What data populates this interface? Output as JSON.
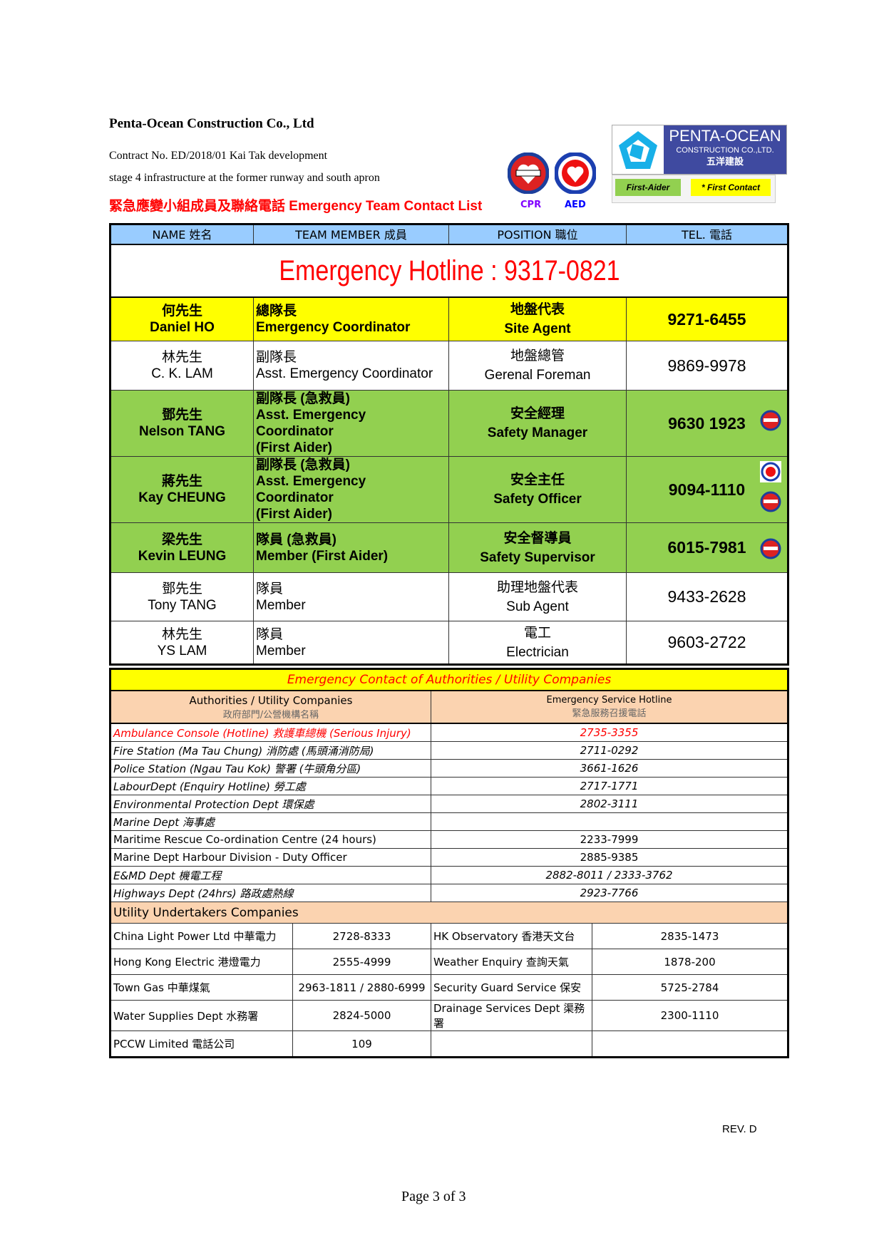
{
  "header": {
    "company": "Penta-Ocean Construction Co., Ltd",
    "contract": "Contract No. ED/2018/01   Kai Tak development",
    "stage": "stage 4 infrastructure at the former runway and south apron",
    "list_title": "緊急應變小組成員及聯絡電話 Emergency Team Contact List",
    "badges": [
      {
        "label": "CPR",
        "icon": "cpr-badge-icon",
        "color": "#8000ff"
      },
      {
        "label": "AED",
        "icon": "aed-badge-icon",
        "color": "#0000ff"
      }
    ],
    "logo": {
      "text": "PENTA-OCEAN",
      "sub": "CONSTRUCTION CO.,LTD.",
      "zh": "五洋建設",
      "color": "#3f4aa0"
    },
    "legend": [
      {
        "label": "First-Aider",
        "color": "#92d050"
      },
      {
        "label": "* First Contact",
        "color": "#ffff00"
      }
    ]
  },
  "team": {
    "columns": [
      "NAME 姓名",
      "TEAM MEMBER 成員",
      "POSITION 職位",
      "TEL. 電話"
    ],
    "hotline": "Emergency Hotline : 9317-0821",
    "rows": [
      {
        "zh_name": "何先生",
        "name": "Daniel HO",
        "role_zh": "總隊長",
        "role": "Emergency Coordinator",
        "role_extra": "",
        "pos_zh": "地盤代表",
        "pos": "Site Agent",
        "tel": "9271-6455",
        "style": "first-contact",
        "icons": []
      },
      {
        "zh_name": "林先生",
        "name": "C. K. LAM",
        "role_zh": "副隊長",
        "role": "Asst. Emergency Coordinator",
        "role_extra": "",
        "pos_zh": "地盤總管",
        "pos": "Gerenal Foreman",
        "tel": "9869-9978",
        "style": "normal",
        "icons": []
      },
      {
        "zh_name": "鄧先生",
        "name": "Nelson TANG",
        "role_zh": "副隊長 (急救員)",
        "role": "Asst. Emergency Coordinator",
        "role_extra": "(First Aider)",
        "pos_zh": "安全經理",
        "pos": "Safety Manager",
        "tel": "9630 1923",
        "style": "first-aider",
        "icons": [
          "cpr"
        ]
      },
      {
        "zh_name": "蔣先生",
        "name": "Kay CHEUNG",
        "role_zh": "副隊長 (急救員)",
        "role": "Asst. Emergency Coordinator",
        "role_extra": "(First Aider)",
        "pos_zh": "安全主任",
        "pos": "Safety Officer",
        "tel": "9094-1110",
        "style": "first-aider",
        "icons": [
          "aed",
          "cpr"
        ]
      },
      {
        "zh_name": "梁先生",
        "name": "Kevin LEUNG",
        "role_zh": "隊員 (急救員)",
        "role": "Member (First Aider)",
        "role_extra": "",
        "pos_zh": "安全督導員",
        "pos": "Safety Supervisor",
        "tel": "6015-7981",
        "style": "first-aider",
        "icons": [
          "cpr"
        ]
      },
      {
        "zh_name": "鄧先生",
        "name": "Tony TANG",
        "role_zh": "隊員",
        "role": "Member",
        "role_extra": "",
        "pos_zh": "助理地盤代表",
        "pos": "Sub Agent",
        "tel": "9433-2628",
        "style": "normal",
        "icons": []
      },
      {
        "zh_name": "林先生",
        "name": "YS LAM",
        "role_zh": "隊員",
        "role": "Member",
        "role_extra": "",
        "pos_zh": "電工",
        "pos": "Electrician",
        "tel": "9603-2722",
        "style": "normal",
        "icons": []
      }
    ]
  },
  "authorities": {
    "title": "Emergency Contact of Authorities / Utility Companies",
    "col1": "Authorities / Utility Companies",
    "col1_zh": "政府部門/公營機構名稱",
    "col2": "Emergency Service Hotline",
    "col2_zh": "緊急服務召援電話",
    "rows": [
      {
        "name": "Ambulance Console (Hotline) 救護車總機 (Serious Injury)",
        "tel": "2735-3355",
        "italic": true,
        "red": true
      },
      {
        "name": "Fire Station (Ma Tau Chung) 消防處 (馬頭涌消防局)",
        "tel": "2711-0292",
        "italic": true,
        "red": false
      },
      {
        "name": "Police Station (Ngau Tau Kok) 警署 (牛頭角分區)",
        "tel": "3661-1626",
        "italic": true,
        "red": false
      },
      {
        "name": "LabourDept (Enquiry Hotline) 勞工處",
        "tel": "2717-1771",
        "italic": true,
        "red": false
      },
      {
        "name": "Environmental Protection Dept 環保處",
        "tel": "2802-3111",
        "italic": true,
        "red": false
      },
      {
        "name": "Marine Dept 海事處",
        "tel": "",
        "italic": true,
        "red": false
      },
      {
        "name": "Maritime Rescue Co-ordination Centre (24 hours)",
        "tel": "2233-7999",
        "italic": false,
        "red": false
      },
      {
        "name": "Marine Dept Harbour Division - Duty Officer",
        "tel": "2885-9385",
        "italic": false,
        "red": false
      },
      {
        "name": "E&MD Dept 機電工程",
        "tel": "2882-8011 / 2333-3762",
        "italic": true,
        "red": false
      },
      {
        "name": "Highways Dept (24hrs) 路政處熱線",
        "tel": "2923-7766",
        "italic": true,
        "red": false
      }
    ],
    "utility_title": "Utility Undertakers Companies",
    "utility_rows": [
      {
        "name1": "China Light Power Ltd 中華電力",
        "tel1": "2728-8333",
        "name2": "HK Observatory   香港天文台",
        "tel2": "2835-1473"
      },
      {
        "name1": "Hong Kong Electric 港燈電力",
        "tel1": "2555-4999",
        "name2": "Weather Enquiry 查詢天氣",
        "tel2": "1878-200"
      },
      {
        "name1": "Town Gas 中華煤氣",
        "tel1": "2963-1811 / 2880-6999",
        "name2": "Security Guard Service 保安",
        "tel2": "5725-2784"
      },
      {
        "name1": "Water Supplies Dept 水務署",
        "tel1": "2824-5000",
        "name2": "Drainage Services Dept 渠務署",
        "tel2": "2300-1110"
      },
      {
        "name1": "PCCW Limited 電話公司",
        "tel1": "109",
        "name2": "",
        "tel2": ""
      }
    ]
  },
  "footer": {
    "rev": "REV. D",
    "page": "Page 3 of 3"
  }
}
